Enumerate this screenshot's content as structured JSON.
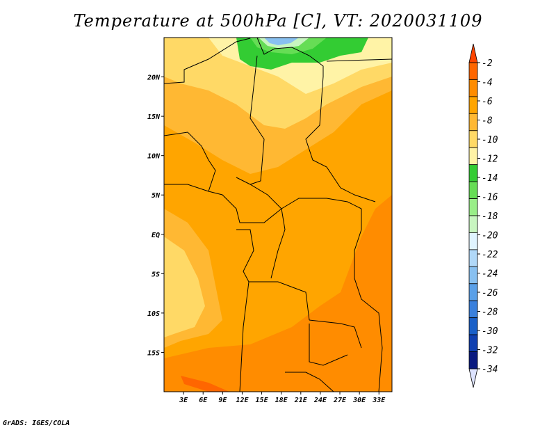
{
  "title": "Temperature at 500hPa [C], VT: 2020031109",
  "credit": "GrADS: IGES/COLA",
  "map": {
    "lon_range": [
      0,
      35
    ],
    "lat_range": [
      -20,
      25
    ],
    "lat_ticks": [
      {
        "value": 20,
        "label": "20N"
      },
      {
        "value": 15,
        "label": "15N"
      },
      {
        "value": 10,
        "label": "10N"
      },
      {
        "value": 5,
        "label": "5N"
      },
      {
        "value": 0,
        "label": "EQ"
      },
      {
        "value": -5,
        "label": "5S"
      },
      {
        "value": -10,
        "label": "10S"
      },
      {
        "value": -15,
        "label": "15S"
      }
    ],
    "lon_ticks": [
      {
        "value": 3,
        "label": "3E"
      },
      {
        "value": 6,
        "label": "6E"
      },
      {
        "value": 9,
        "label": "9E"
      },
      {
        "value": 12,
        "label": "12E"
      },
      {
        "value": 15,
        "label": "15E"
      },
      {
        "value": 18,
        "label": "18E"
      },
      {
        "value": 21,
        "label": "21E"
      },
      {
        "value": 24,
        "label": "24E"
      },
      {
        "value": 27,
        "label": "27E"
      },
      {
        "value": 30,
        "label": "30E"
      },
      {
        "value": 33,
        "label": "33E"
      }
    ]
  },
  "colorbar": {
    "labels": [
      "-2",
      "-4",
      "-6",
      "-8",
      "-10",
      "-12",
      "-14",
      "-16",
      "-18",
      "-20",
      "-22",
      "-24",
      "-26",
      "-28",
      "-30",
      "-32",
      "-34"
    ],
    "colors": [
      "#ff6600",
      "#ff8c00",
      "#ffa500",
      "#ffb833",
      "#ffd966",
      "#fff3a6",
      "#33cc33",
      "#66dd55",
      "#99ee88",
      "#c8f5c0",
      "#e0f4ff",
      "#b0d8f8",
      "#88c0f0",
      "#5aa0e8",
      "#3a80dc",
      "#1a60c8",
      "#1040b0",
      "#0a1a80"
    ],
    "top_color": "#ff4500",
    "bottom_color": "#dde3ff"
  }
}
